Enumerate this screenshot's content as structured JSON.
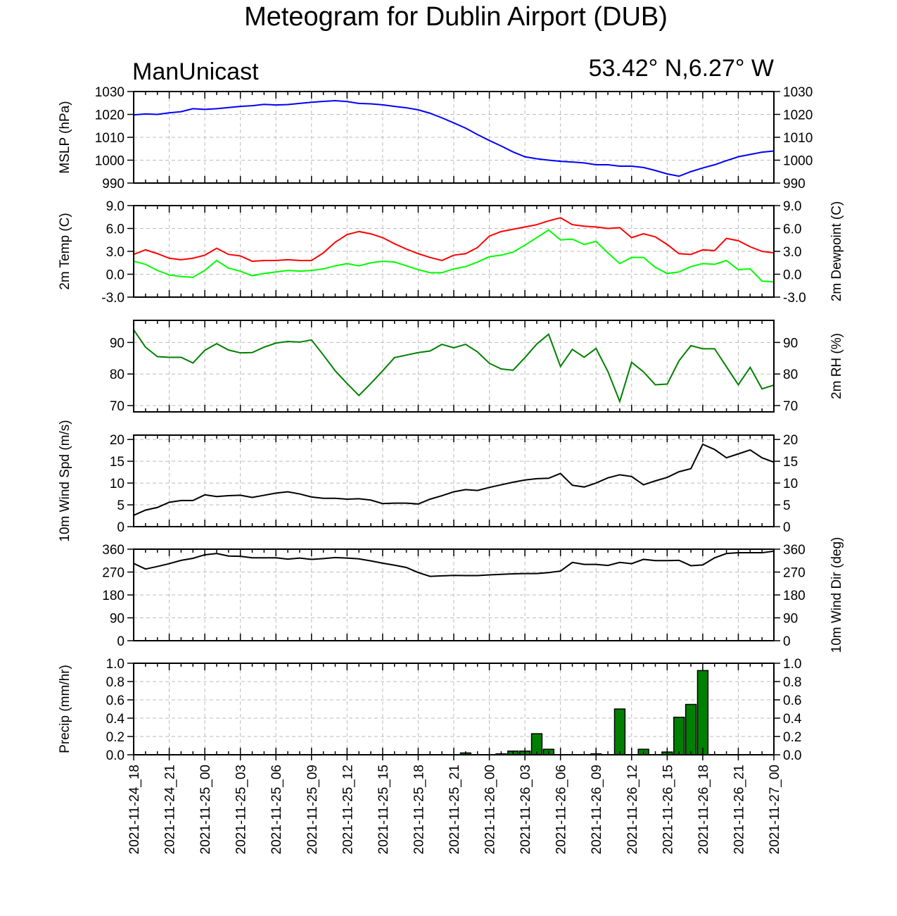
{
  "title": "Meteogram for Dublin Airport (DUB)",
  "left_label": "ManUnicast",
  "right_label": "53.42° N,6.27° W",
  "time_labels": [
    "2021-11-24_18",
    "2021-11-24_21",
    "2021-11-25_00",
    "2021-11-25_03",
    "2021-11-25_06",
    "2021-11-25_09",
    "2021-11-25_12",
    "2021-11-25_15",
    "2021-11-25_18",
    "2021-11-25_21",
    "2021-11-26_00",
    "2021-11-26_03",
    "2021-11-26_06",
    "2021-11-26_09",
    "2021-11-26_12",
    "2021-11-26_15",
    "2021-11-26_18",
    "2021-11-26_21",
    "2021-11-27_00"
  ],
  "chart_data": [
    {
      "type": "line",
      "ylabel": "MSLP (hPa)",
      "ylim": [
        990,
        1030
      ],
      "yticks": [
        "990",
        "1000",
        "1010",
        "1020",
        "1030"
      ],
      "ytick_values": [
        990,
        1000,
        1010,
        1020,
        1030
      ],
      "right_ticks": true,
      "grid": true,
      "x": [
        0,
        1,
        2,
        3,
        4,
        5,
        6,
        7,
        8,
        9,
        10,
        11,
        12,
        13,
        14,
        15,
        16,
        17,
        18,
        19,
        20,
        21,
        22,
        23,
        24,
        25,
        26,
        27,
        28,
        29,
        30,
        31,
        32,
        33,
        34,
        35,
        36,
        37,
        38,
        39,
        40,
        41,
        42,
        43,
        44,
        45,
        46,
        47,
        48,
        49,
        50,
        51,
        52,
        53,
        54
      ],
      "series": [
        {
          "color": "#0000ff",
          "values": [
            1019.8,
            1020.2,
            1020.0,
            1020.7,
            1021.2,
            1022.5,
            1022.2,
            1022.5,
            1023.0,
            1023.5,
            1023.8,
            1024.4,
            1024.1,
            1024.3,
            1024.8,
            1025.3,
            1025.7,
            1026.0,
            1025.6,
            1024.8,
            1024.6,
            1024.2,
            1023.5,
            1022.9,
            1022.0,
            1020.5,
            1018.5,
            1016.3,
            1014.0,
            1011.2,
            1008.6,
            1006.2,
            1003.6,
            1001.5,
            1000.6,
            1000.0,
            999.5,
            999.2,
            998.8,
            998.0,
            998.0,
            997.4,
            997.4,
            996.8,
            995.5,
            994.0,
            993.0,
            995.0,
            996.6,
            998.0,
            999.8,
            1001.5,
            1002.5,
            1003.5,
            1004.0
          ]
        }
      ]
    },
    {
      "type": "line",
      "ylabel": "2m Temp (C)",
      "ylabel_right": "2m Dewpoint (C)",
      "ylim": [
        -3,
        9
      ],
      "yticks": [
        "-3.0",
        "0.0",
        "3.0",
        "6.0",
        "9.0"
      ],
      "ytick_values": [
        -3,
        0,
        3,
        6,
        9
      ],
      "right_ticks": true,
      "grid": true,
      "x": [
        0,
        1,
        2,
        3,
        4,
        5,
        6,
        7,
        8,
        9,
        10,
        11,
        12,
        13,
        14,
        15,
        16,
        17,
        18,
        19,
        20,
        21,
        22,
        23,
        24,
        25,
        26,
        27,
        28,
        29,
        30,
        31,
        32,
        33,
        34,
        35,
        36,
        37,
        38,
        39,
        40,
        41,
        42,
        43,
        44,
        45,
        46,
        47,
        48,
        49,
        50,
        51,
        52,
        53,
        54
      ],
      "series": [
        {
          "color": "#ff0000",
          "values": [
            2.6,
            3.2,
            2.7,
            2.1,
            1.9,
            2.1,
            2.5,
            3.4,
            2.6,
            2.4,
            1.7,
            1.8,
            1.8,
            1.9,
            1.8,
            1.8,
            2.8,
            4.2,
            5.2,
            5.6,
            5.3,
            4.8,
            4.0,
            3.3,
            2.7,
            2.2,
            1.8,
            2.5,
            2.7,
            3.5,
            5.0,
            5.6,
            5.9,
            6.2,
            6.5,
            7.0,
            7.4,
            6.5,
            6.3,
            6.2,
            6.0,
            6.1,
            4.8,
            5.3,
            4.9,
            3.9,
            2.7,
            2.6,
            3.2,
            3.1,
            4.7,
            4.4,
            3.6,
            3.0,
            2.8
          ]
        },
        {
          "color": "#00ff00",
          "values": [
            1.7,
            1.3,
            0.5,
            -0.1,
            -0.3,
            -0.4,
            0.5,
            1.8,
            0.8,
            0.4,
            -0.2,
            0.1,
            0.3,
            0.5,
            0.4,
            0.5,
            0.7,
            1.1,
            1.4,
            1.1,
            1.5,
            1.7,
            1.6,
            1.1,
            0.6,
            0.2,
            0.2,
            0.7,
            1.0,
            1.6,
            2.3,
            2.5,
            2.9,
            3.8,
            4.8,
            5.8,
            4.5,
            4.6,
            3.9,
            4.3,
            2.8,
            1.4,
            2.2,
            2.2,
            0.9,
            0.1,
            0.3,
            1.0,
            1.4,
            1.3,
            1.8,
            0.6,
            0.7,
            -0.9,
            -1.0
          ]
        }
      ]
    },
    {
      "type": "line",
      "ylabel_right": "2m RH (%)",
      "ylim": [
        68,
        97
      ],
      "yticks": [
        "70",
        "80",
        "90"
      ],
      "ytick_values": [
        70,
        80,
        90
      ],
      "right_ticks": true,
      "grid": true,
      "x": [
        0,
        1,
        2,
        3,
        4,
        5,
        6,
        7,
        8,
        9,
        10,
        11,
        12,
        13,
        14,
        15,
        16,
        17,
        18,
        19,
        20,
        21,
        22,
        23,
        24,
        25,
        26,
        27,
        28,
        29,
        30,
        31,
        32,
        33,
        34,
        35,
        36,
        37,
        38,
        39,
        40,
        41,
        42,
        43,
        44,
        45,
        46,
        47,
        48,
        49,
        50,
        51,
        52,
        53,
        54
      ],
      "series": [
        {
          "color": "#008000",
          "values": [
            94.0,
            88.5,
            85.5,
            85.3,
            85.3,
            83.5,
            87.5,
            89.6,
            87.6,
            86.7,
            86.8,
            88.5,
            89.8,
            90.3,
            90.1,
            90.8,
            86.0,
            81.0,
            77.0,
            73.2,
            77.0,
            81.0,
            85.2,
            86.0,
            86.8,
            87.3,
            89.4,
            88.3,
            89.4,
            87.0,
            83.4,
            81.6,
            81.2,
            85.2,
            89.5,
            92.6,
            82.4,
            87.8,
            85.3,
            88.1,
            80.8,
            71.3,
            83.7,
            80.7,
            76.6,
            76.8,
            84.2,
            89.0,
            88.0,
            88.0,
            82.3,
            76.6,
            82.1,
            75.3,
            76.5
          ]
        }
      ]
    },
    {
      "type": "line",
      "ylabel": "10m Wind Spd (m/s)",
      "ylim": [
        0,
        21
      ],
      "yticks": [
        "0",
        "5",
        "10",
        "15",
        "20"
      ],
      "ytick_values": [
        0,
        5,
        10,
        15,
        20
      ],
      "right_ticks": true,
      "grid": true,
      "x": [
        0,
        1,
        2,
        3,
        4,
        5,
        6,
        7,
        8,
        9,
        10,
        11,
        12,
        13,
        14,
        15,
        16,
        17,
        18,
        19,
        20,
        21,
        22,
        23,
        24,
        25,
        26,
        27,
        28,
        29,
        30,
        31,
        32,
        33,
        34,
        35,
        36,
        37,
        38,
        39,
        40,
        41,
        42,
        43,
        44,
        45,
        46,
        47,
        48,
        49,
        50,
        51,
        52,
        53,
        54
      ],
      "series": [
        {
          "color": "#000000",
          "values": [
            2.6,
            3.8,
            4.4,
            5.6,
            6.0,
            6.0,
            7.3,
            6.9,
            7.1,
            7.2,
            6.7,
            7.2,
            7.7,
            8.0,
            7.5,
            6.8,
            6.5,
            6.5,
            6.3,
            6.4,
            6.1,
            5.3,
            5.4,
            5.4,
            5.2,
            6.3,
            7.1,
            8.0,
            8.5,
            8.3,
            9.0,
            9.6,
            10.2,
            10.7,
            11.0,
            11.1,
            12.2,
            9.5,
            9.1,
            10.0,
            11.2,
            11.9,
            11.5,
            9.6,
            10.5,
            11.3,
            12.6,
            13.3,
            18.9,
            17.7,
            15.8,
            16.7,
            17.6,
            15.8,
            14.8
          ]
        }
      ]
    },
    {
      "type": "line",
      "ylabel_right": "10m Wind Dir (deg)",
      "ylim": [
        0,
        360
      ],
      "yticks": [
        "0",
        "90",
        "180",
        "270",
        "360"
      ],
      "ytick_values": [
        0,
        90,
        180,
        270,
        360
      ],
      "right_ticks": true,
      "grid": true,
      "x": [
        0,
        1,
        2,
        3,
        4,
        5,
        6,
        7,
        8,
        9,
        10,
        11,
        12,
        13,
        14,
        15,
        16,
        17,
        18,
        19,
        20,
        21,
        22,
        23,
        24,
        25,
        26,
        27,
        28,
        29,
        30,
        31,
        32,
        33,
        34,
        35,
        36,
        37,
        38,
        39,
        40,
        41,
        42,
        43,
        44,
        45,
        46,
        47,
        48,
        49,
        50,
        51,
        52,
        53,
        54
      ],
      "series": [
        {
          "color": "#000000",
          "values": [
            304,
            282,
            292,
            303,
            316,
            324,
            338,
            343,
            333,
            332,
            326,
            326,
            326,
            321,
            325,
            320,
            323,
            327,
            325,
            322,
            314,
            305,
            297,
            288,
            268,
            253,
            255,
            257,
            256,
            256,
            259,
            261,
            263,
            264,
            264,
            268,
            274,
            308,
            300,
            300,
            296,
            308,
            303,
            320,
            315,
            315,
            316,
            295,
            298,
            326,
            343,
            346,
            346,
            346,
            352
          ]
        }
      ]
    },
    {
      "type": "bar",
      "ylabel": "Precip (mm/hr)",
      "ylim": [
        0,
        1.0
      ],
      "yticks": [
        "0.0",
        "0.2",
        "0.4",
        "0.6",
        "0.8",
        "1.0"
      ],
      "ytick_values": [
        0,
        0.2,
        0.4,
        0.6,
        0.8,
        1.0
      ],
      "right_ticks": true,
      "grid": true,
      "color": "#008000",
      "x": [
        25,
        26,
        27,
        28,
        29,
        30,
        31,
        32,
        33,
        34,
        35,
        36,
        37,
        38,
        39,
        40,
        41,
        42,
        43,
        44,
        45,
        46,
        47,
        48,
        49,
        50
      ],
      "values": [
        0.0,
        0.0,
        0.0,
        0.02,
        0.0,
        0.0,
        0.01,
        0.04,
        0.04,
        0.23,
        0.06,
        0.0,
        0.0,
        0.0,
        0.01,
        0.0,
        0.5,
        0.0,
        0.06,
        0.0,
        0.03,
        0.41,
        0.55,
        0.92,
        0.0,
        0.0
      ]
    }
  ]
}
